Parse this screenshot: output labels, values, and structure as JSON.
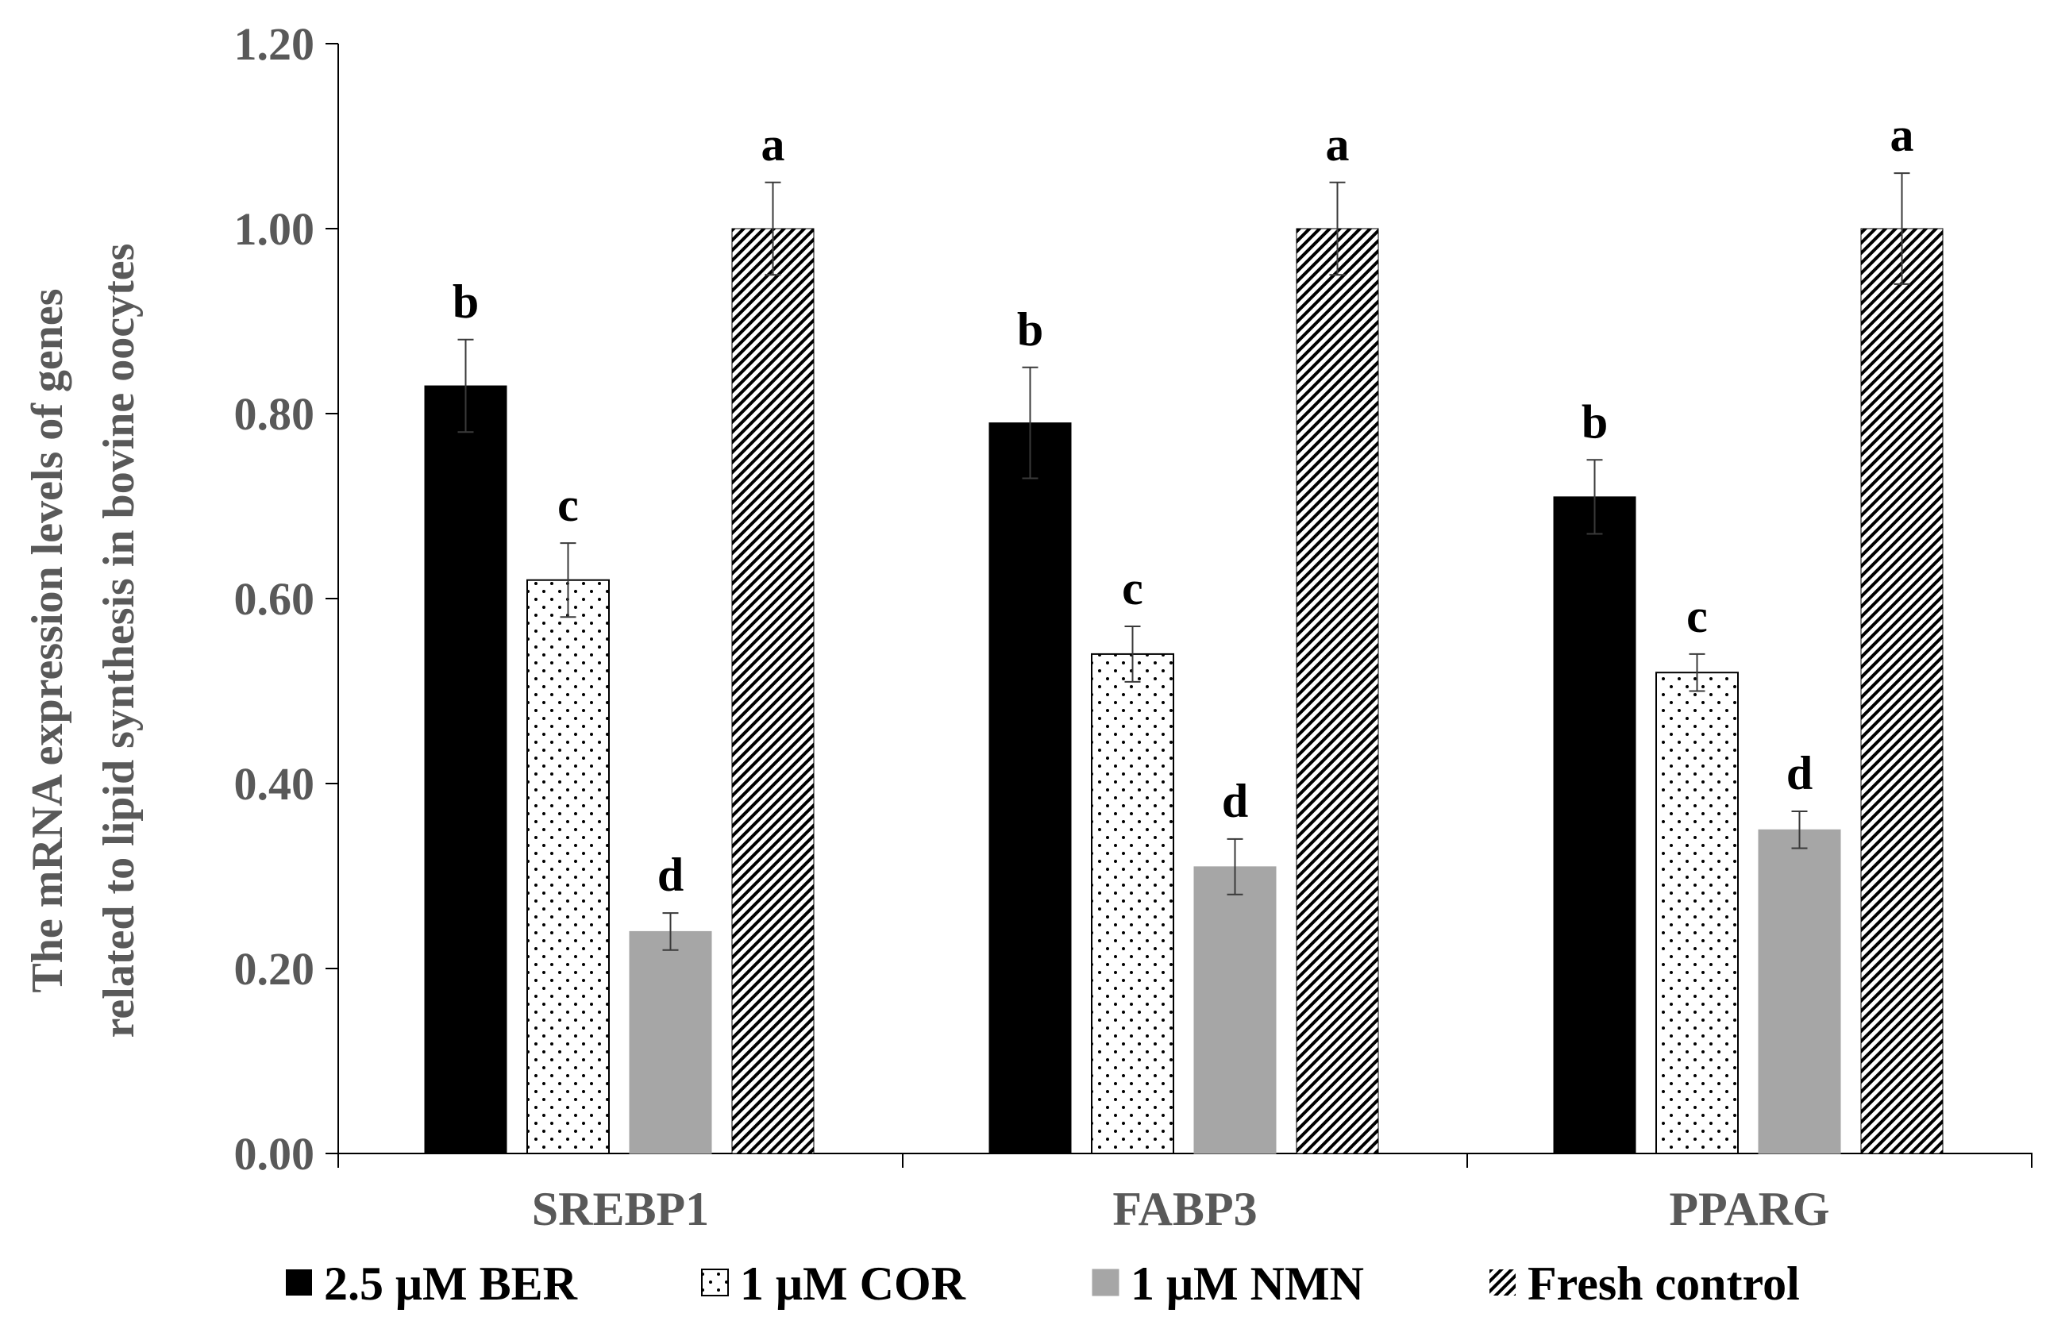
{
  "chart_data": {
    "type": "bar",
    "title": "",
    "xlabel": "",
    "ylabel_lines": [
      "The mRNA expression levels of genes",
      "related to lipid synthesis in bovine oocytes"
    ],
    "ylim": [
      0,
      1.2
    ],
    "yticks": [
      "0.00",
      "0.20",
      "0.40",
      "0.60",
      "0.80",
      "1.00",
      "1.20"
    ],
    "categories": [
      "SREBP1",
      "FABP3",
      "PPARG"
    ],
    "legend_position": "bottom",
    "series": [
      {
        "name": "2.5 μM BER",
        "pattern": "solid-black",
        "color": "#000000",
        "values": [
          0.83,
          0.79,
          0.71
        ],
        "errors": [
          0.05,
          0.06,
          0.04
        ],
        "labels": [
          "b",
          "b",
          "b"
        ]
      },
      {
        "name": "1 μM COR",
        "pattern": "dots",
        "color": "#ffffff",
        "values": [
          0.62,
          0.54,
          0.52
        ],
        "errors": [
          0.04,
          0.03,
          0.02
        ],
        "labels": [
          "c",
          "c",
          "c"
        ]
      },
      {
        "name": "1 μM NMN",
        "pattern": "solid-gray",
        "color": "#a6a6a6",
        "values": [
          0.24,
          0.31,
          0.35
        ],
        "errors": [
          0.02,
          0.03,
          0.02
        ],
        "labels": [
          "d",
          "d",
          "d"
        ]
      },
      {
        "name": "Fresh control",
        "pattern": "diagonal-hatch",
        "color": "#000000",
        "values": [
          1.0,
          1.0,
          1.0
        ],
        "errors": [
          0.05,
          0.05,
          0.06
        ],
        "labels": [
          "a",
          "a",
          "a"
        ]
      }
    ]
  }
}
